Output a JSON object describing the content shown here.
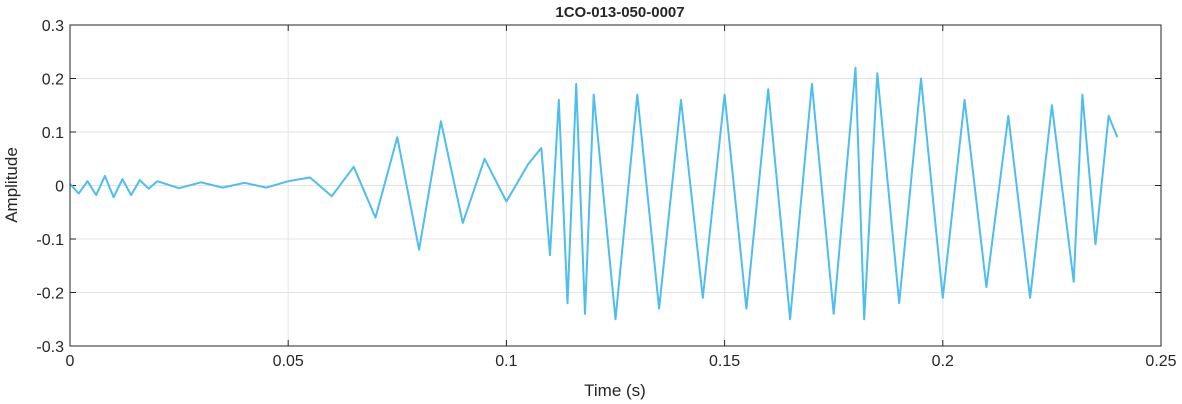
{
  "chart_data": {
    "type": "line",
    "title": "1CO-013-050-0007",
    "xlabel": "Time (s)",
    "ylabel": "Amplitude",
    "xlim": [
      0,
      0.25
    ],
    "ylim": [
      -0.3,
      0.3
    ],
    "x_ticks": [
      0,
      0.05,
      0.1,
      0.15,
      0.2,
      0.25
    ],
    "x_tick_labels": [
      "0",
      "0.05",
      "0.1",
      "0.15",
      "0.2",
      "0.25"
    ],
    "y_ticks": [
      -0.3,
      -0.2,
      -0.1,
      0,
      0.1,
      0.2,
      0.3
    ],
    "y_tick_labels": [
      "-0.3",
      "-0.2",
      "-0.1",
      "0",
      "0.1",
      "0.2",
      "0.3"
    ],
    "grid": true,
    "line_color": "#4DBEEE",
    "series": [
      {
        "x": [
          0,
          0.002,
          0.004,
          0.006,
          0.008,
          0.01,
          0.012,
          0.014,
          0.016,
          0.018,
          0.02,
          0.025,
          0.03,
          0.035,
          0.04,
          0.045,
          0.05,
          0.055,
          0.06,
          0.065,
          0.07,
          0.075,
          0.08,
          0.085,
          0.09,
          0.095,
          0.1,
          0.105,
          0.108,
          0.11,
          0.112,
          0.114,
          0.116,
          0.118,
          0.12,
          0.125,
          0.13,
          0.135,
          0.14,
          0.145,
          0.15,
          0.155,
          0.16,
          0.165,
          0.17,
          0.175,
          0.18,
          0.182,
          0.185,
          0.19,
          0.195,
          0.2,
          0.205,
          0.21,
          0.215,
          0.22,
          0.225,
          0.23,
          0.232,
          0.235,
          0.238,
          0.24
        ],
        "y": [
          0.003,
          -0.015,
          0.008,
          -0.018,
          0.018,
          -0.022,
          0.012,
          -0.018,
          0.01,
          -0.006,
          0.008,
          -0.005,
          0.006,
          -0.004,
          0.005,
          -0.004,
          0.008,
          0.015,
          -0.02,
          0.035,
          -0.06,
          0.09,
          -0.12,
          0.12,
          -0.07,
          0.05,
          -0.03,
          0.04,
          0.07,
          -0.13,
          0.16,
          -0.22,
          0.19,
          -0.24,
          0.17,
          -0.25,
          0.17,
          -0.23,
          0.16,
          -0.21,
          0.17,
          -0.23,
          0.18,
          -0.25,
          0.19,
          -0.24,
          0.22,
          -0.25,
          0.21,
          -0.22,
          0.2,
          -0.21,
          0.16,
          -0.19,
          0.13,
          -0.21,
          0.15,
          -0.18,
          0.17,
          -0.11,
          0.13,
          0.09
        ]
      }
    ]
  }
}
